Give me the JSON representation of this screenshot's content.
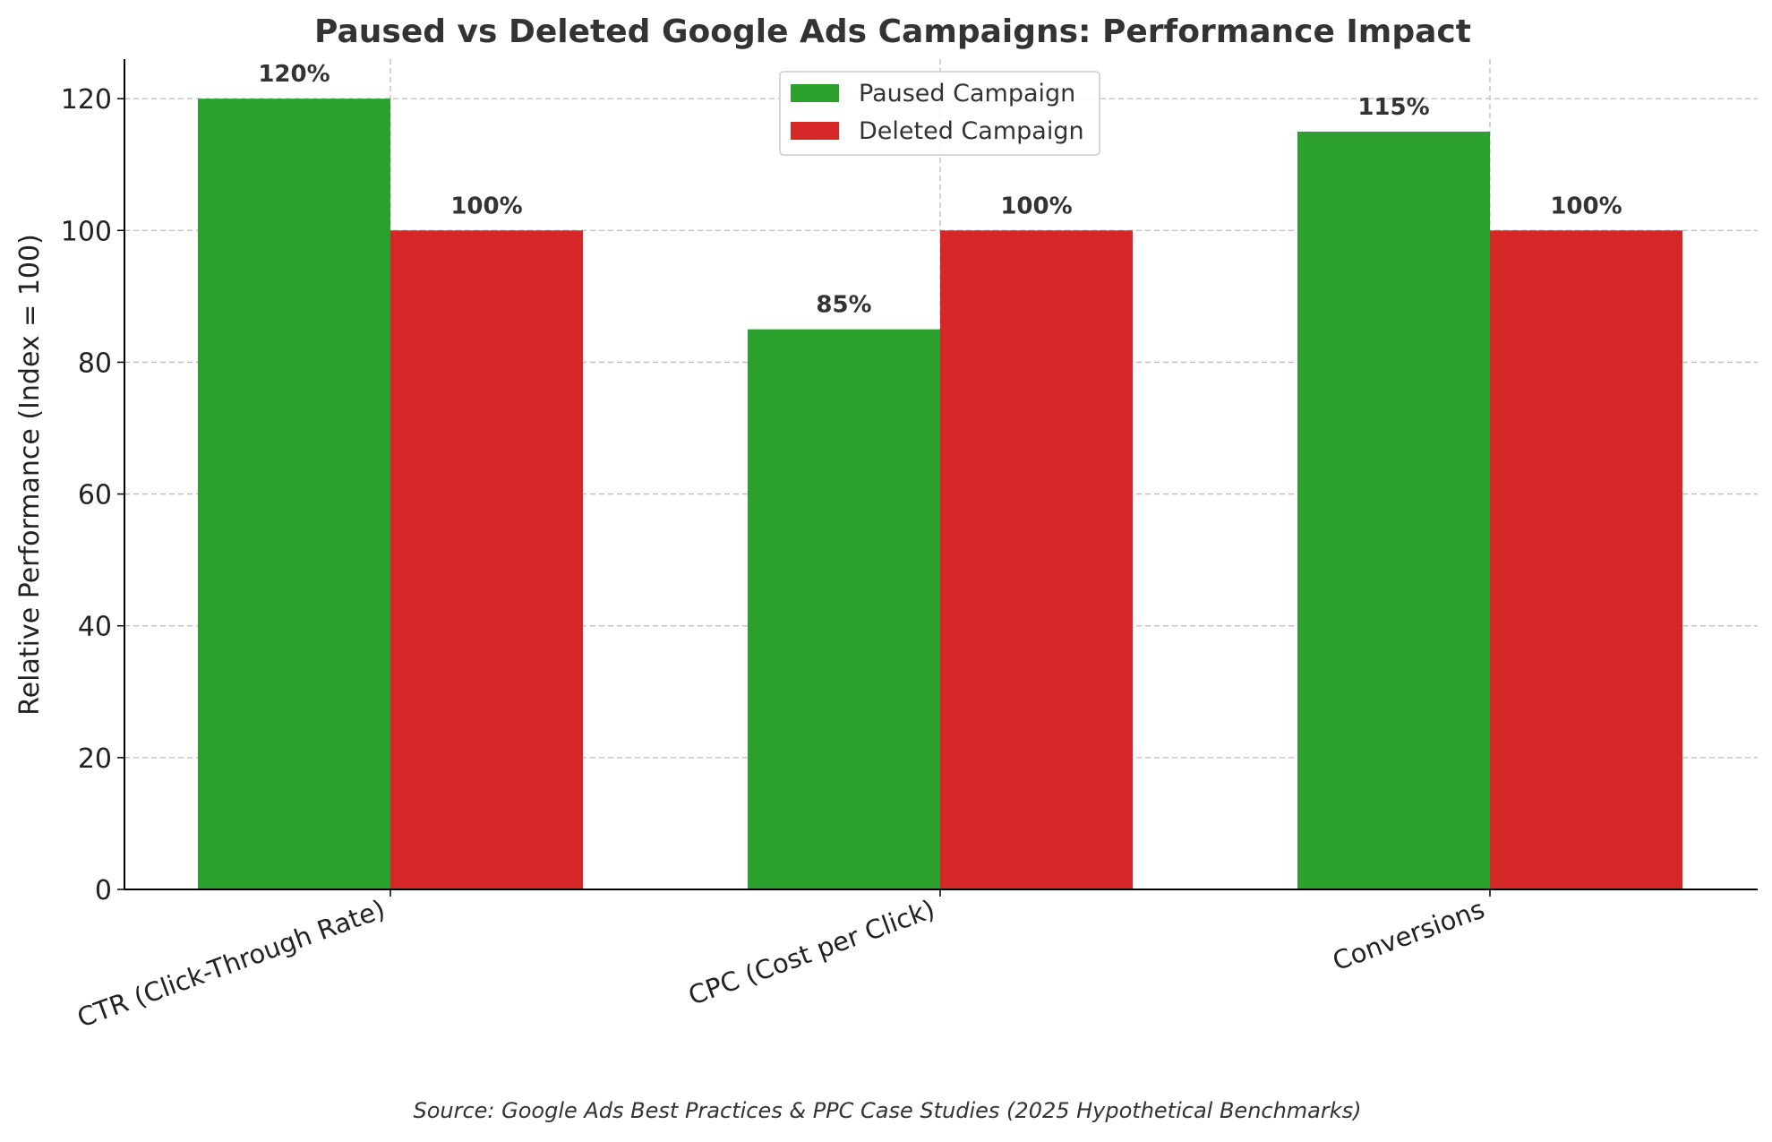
{
  "chart_data": {
    "type": "bar",
    "title": "Paused vs Deleted Google Ads Campaigns: Performance Impact",
    "xlabel": "",
    "ylabel": "Relative Performance (Index = 100)",
    "categories": [
      "CTR (Click-Through Rate)",
      "CPC (Cost per Click)",
      "Conversions"
    ],
    "series": [
      {
        "name": "Paused Campaign",
        "values": [
          120,
          85,
          115
        ],
        "labels": [
          "120%",
          "85%",
          "115%"
        ],
        "color": "#2ca02c"
      },
      {
        "name": "Deleted Campaign",
        "values": [
          100,
          100,
          100
        ],
        "labels": [
          "100%",
          "100%",
          "100%"
        ],
        "color": "#d62728"
      }
    ],
    "ylim": [
      0,
      126
    ],
    "yticks": [
      0,
      20,
      40,
      60,
      80,
      100,
      120
    ],
    "grid": true,
    "legend_position": "top-center",
    "source": "Source: Google Ads Best Practices & PPC Case Studies (2025 Hypothetical Benchmarks)"
  }
}
